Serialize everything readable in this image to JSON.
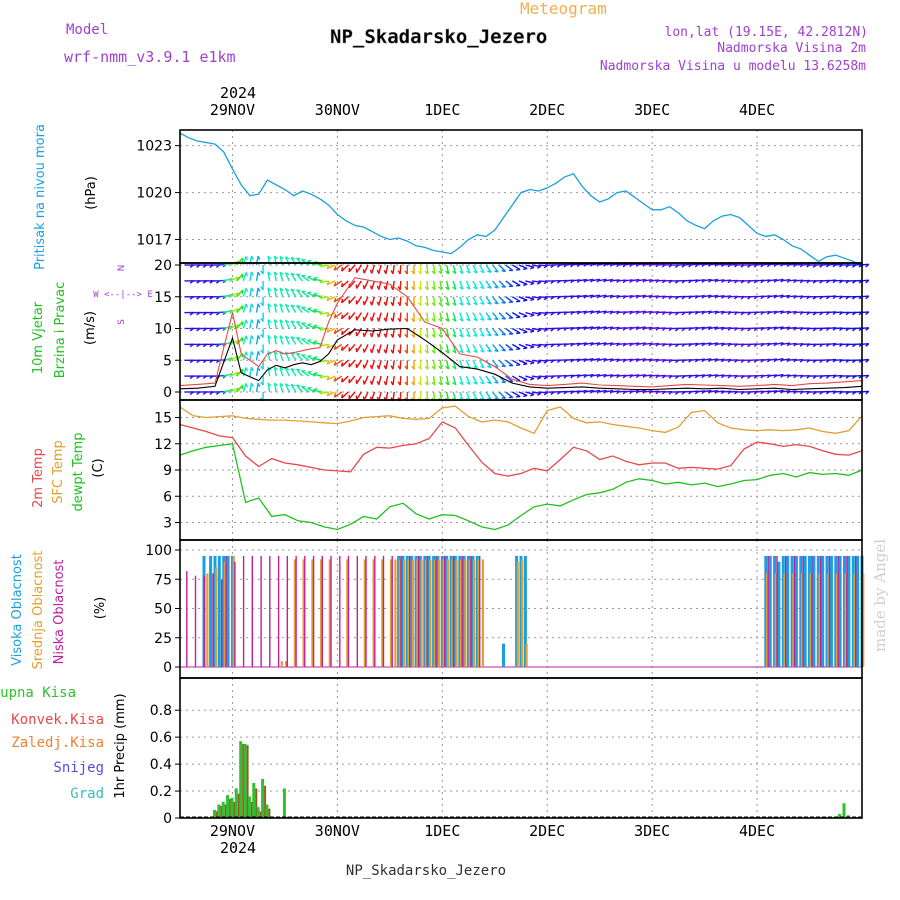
{
  "header": {
    "model_label": "Model",
    "model_name": "wrf-nmm_v3.9.1 e1km",
    "product": "Meteogram",
    "station": "NP_Skadarsko_Jezero",
    "lonlat": "lon,lat (19.15E, 42.2812N)",
    "elevation": "Nadmorska Visina 2m",
    "model_elevation": "Nadmorska Visina u modelu 13.6258m",
    "credit": "made by Angel",
    "footer": "NP_Skadarsko_Jezero"
  },
  "time_axis": {
    "top_year": "2024",
    "bottom_year": "2024",
    "days": [
      "29NOV",
      "30NOV",
      "1DEC",
      "2DEC",
      "3DEC",
      "4DEC"
    ],
    "hours_start": 12,
    "hours_end": 168
  },
  "panels": {
    "pressure": {
      "labels": [
        "Pritisak na nivou mora",
        "(hPa)"
      ],
      "ticks": [
        "1023",
        "1020",
        "1017"
      ],
      "tick_values": [
        1023,
        1020,
        1017
      ]
    },
    "wind": {
      "labels": [
        "10m Vjetar",
        "Brzina i Pravac",
        "(m/s)"
      ],
      "ticks": [
        "20",
        "15",
        "10",
        "5",
        "0"
      ],
      "tick_values": [
        20,
        15,
        10,
        5,
        0
      ],
      "compass": [
        "N",
        "W <--|--> E",
        "S"
      ]
    },
    "temperature": {
      "labels": [
        "2m Temp",
        "SFC Temp",
        "dewpt Temp",
        "(C)"
      ],
      "ticks": [
        "15",
        "12",
        "9",
        "6",
        "3"
      ],
      "tick_values": [
        15,
        12,
        9,
        6,
        3
      ]
    },
    "cloud": {
      "labels": [
        "Visoka Oblacnost",
        "Srednja Oblacnost",
        "Niska Oblacnost",
        "(%)"
      ],
      "ticks": [
        "100",
        "75",
        "50",
        "25",
        "0"
      ],
      "tick_values": [
        100,
        75,
        50,
        25,
        0
      ]
    },
    "precip": {
      "labels": [
        "1hr Precip (mm)"
      ],
      "legend": [
        "Ukupna Kisa",
        "Konvek.Kisa",
        "Zaledj.Kisa",
        "Snijeg",
        "Grad"
      ],
      "ticks": [
        "0.8",
        "0.6",
        "0.4",
        "0.2",
        "0"
      ],
      "tick_values": [
        0.8,
        0.6,
        0.4,
        0.2,
        0
      ]
    }
  },
  "colors": {
    "title": "#000000",
    "meteogram": "#f0b050",
    "model": "#a040d0",
    "pressure": "#1aa0e0",
    "temp2m": "#e84848",
    "sfc": "#e0a030",
    "dewpt": "#20c020",
    "high_cloud": "#1aa0e0",
    "mid_cloud": "#e0a030",
    "low_cloud": "#c020a0",
    "rain": "#30c030",
    "conv": "#e84848",
    "frz": "#f08030",
    "snow": "#5050e0",
    "hail": "#30c0c0",
    "wind_speed": "#000000",
    "wind_gust": "#e84848"
  },
  "chart_data": [
    {
      "type": "line",
      "name": "pressure",
      "x_unit": "hours since 29NOV 00UTC",
      "x": [
        12,
        14,
        16,
        18,
        20,
        22,
        24,
        26,
        28,
        30,
        32,
        34,
        36,
        38,
        40,
        42,
        44,
        46,
        48,
        50,
        52,
        54,
        56,
        58,
        60,
        62,
        64,
        66,
        68,
        70,
        72,
        74,
        76,
        78,
        80,
        82,
        84,
        86,
        88,
        90,
        92,
        94,
        96,
        98,
        100,
        102,
        104,
        106,
        108,
        110,
        112,
        114,
        116,
        118,
        120,
        122,
        124,
        126,
        128,
        130,
        132,
        134,
        136,
        138,
        140,
        142,
        144,
        146,
        148,
        150,
        152,
        154,
        156,
        158,
        160,
        162,
        164,
        166,
        168
      ],
      "values": [
        1023.8,
        1023.5,
        1023.3,
        1023.2,
        1023.1,
        1022.6,
        1021.5,
        1020.5,
        1019.8,
        1019.9,
        1020.8,
        1020.5,
        1020.2,
        1019.8,
        1020.1,
        1019.9,
        1019.6,
        1019.2,
        1018.6,
        1018.2,
        1017.9,
        1017.8,
        1017.5,
        1017.2,
        1017.0,
        1017.1,
        1016.9,
        1016.6,
        1016.5,
        1016.3,
        1016.2,
        1016.1,
        1016.5,
        1017.0,
        1017.3,
        1017.2,
        1017.6,
        1018.4,
        1019.2,
        1020.0,
        1020.2,
        1020.1,
        1020.3,
        1020.6,
        1021.0,
        1021.2,
        1020.4,
        1019.8,
        1019.4,
        1019.6,
        1020.0,
        1020.1,
        1019.7,
        1019.3,
        1018.9,
        1018.9,
        1019.1,
        1018.7,
        1018.2,
        1017.9,
        1017.7,
        1018.2,
        1018.5,
        1018.6,
        1018.4,
        1017.9,
        1017.4,
        1017.2,
        1017.3,
        1017.0,
        1016.6,
        1016.4,
        1016.0,
        1015.6,
        1015.9,
        1016.0,
        1015.8,
        1015.6,
        1015.3
      ],
      "ylabel": "(hPa)",
      "ylim": [
        1015.5,
        1024
      ]
    },
    {
      "type": "line",
      "name": "wind",
      "x_unit": "hours since 29NOV 00UTC",
      "x": [
        12,
        16,
        20,
        24,
        26,
        28,
        30,
        32,
        34,
        36,
        38,
        40,
        42,
        44,
        46,
        48,
        52,
        56,
        60,
        64,
        68,
        72,
        76,
        80,
        84,
        88,
        92,
        96,
        100,
        104,
        108,
        112,
        116,
        120,
        124,
        128,
        132,
        136,
        140,
        144,
        148,
        152,
        156,
        160,
        164,
        168
      ],
      "series": [
        {
          "name": "speed",
          "values": [
            0.5,
            0.6,
            0.9,
            8.5,
            3.0,
            2.4,
            1.8,
            3.5,
            4.2,
            3.8,
            4.3,
            4.6,
            4.3,
            4.8,
            6.0,
            8.2,
            9.8,
            9.6,
            9.9,
            10.0,
            8.2,
            6.2,
            4.0,
            3.6,
            2.8,
            1.4,
            0.8,
            0.6,
            0.7,
            0.8,
            0.6,
            0.5,
            0.4,
            0.4,
            0.5,
            0.6,
            0.5,
            0.6,
            0.4,
            0.5,
            0.6,
            0.4,
            0.5,
            0.6,
            0.7,
            0.9
          ]
        },
        {
          "name": "gust",
          "values": [
            1.0,
            1.2,
            1.4,
            12.5,
            6.0,
            5.0,
            4.0,
            6.0,
            6.5,
            6.0,
            6.2,
            6.5,
            6.8,
            7.0,
            11.0,
            14.0,
            18.0,
            17.5,
            17.0,
            15.0,
            11.0,
            10.0,
            6.0,
            5.5,
            4.0,
            2.0,
            1.2,
            1.0,
            1.2,
            1.4,
            1.1,
            1.0,
            0.9,
            0.8,
            1.0,
            1.2,
            1.1,
            1.0,
            0.9,
            1.0,
            1.2,
            1.0,
            1.3,
            1.4,
            1.6,
            1.8
          ]
        }
      ],
      "direction_deg": [
        90,
        90,
        90,
        60,
        20,
        10,
        10,
        350,
        350,
        340,
        330,
        320,
        300,
        290,
        260,
        240,
        220,
        200,
        190,
        180,
        175,
        170,
        160,
        150,
        140,
        120,
        100,
        90,
        85,
        80,
        80,
        85,
        80,
        85,
        90,
        85,
        80,
        85,
        90,
        85,
        80,
        85,
        90,
        85,
        90,
        85
      ],
      "ylabel": "(m/s)",
      "ylim": [
        0,
        20
      ]
    },
    {
      "type": "line",
      "name": "temperature",
      "x_unit": "hours since 29NOV 00UTC",
      "x": [
        12,
        15,
        18,
        21,
        24,
        27,
        30,
        33,
        36,
        39,
        42,
        45,
        48,
        51,
        54,
        57,
        60,
        63,
        66,
        69,
        72,
        75,
        78,
        81,
        84,
        87,
        90,
        93,
        96,
        99,
        102,
        105,
        108,
        111,
        114,
        117,
        120,
        123,
        126,
        129,
        132,
        135,
        138,
        141,
        144,
        147,
        150,
        153,
        156,
        159,
        162,
        165,
        168
      ],
      "series": [
        {
          "name": "2m Temp",
          "values": [
            14.2,
            13.8,
            13.4,
            12.9,
            12.7,
            10.6,
            9.4,
            10.3,
            9.8,
            9.6,
            9.3,
            9.0,
            8.9,
            8.8,
            10.8,
            11.6,
            11.5,
            11.8,
            12.0,
            12.6,
            14.5,
            13.8,
            11.8,
            9.9,
            8.6,
            8.3,
            8.6,
            9.2,
            8.9,
            10.2,
            11.6,
            11.2,
            10.2,
            10.6,
            10.0,
            9.6,
            9.8,
            9.8,
            9.2,
            9.3,
            9.2,
            9.1,
            9.5,
            11.4,
            12.2,
            12.0,
            11.7,
            11.9,
            11.7,
            11.2,
            10.8,
            10.7,
            11.2
          ]
        },
        {
          "name": "SFC Temp",
          "values": [
            16.2,
            15.2,
            15.0,
            15.1,
            15.2,
            14.9,
            14.8,
            14.7,
            14.7,
            14.6,
            14.5,
            14.4,
            14.3,
            14.6,
            15.0,
            15.1,
            15.2,
            14.9,
            14.8,
            14.9,
            16.1,
            16.3,
            15.1,
            14.5,
            14.7,
            14.5,
            13.8,
            13.2,
            15.8,
            16.2,
            14.9,
            14.4,
            14.5,
            14.2,
            14.0,
            13.8,
            13.5,
            13.3,
            13.9,
            15.6,
            15.8,
            14.4,
            13.8,
            13.6,
            13.5,
            13.6,
            13.5,
            13.6,
            13.8,
            13.4,
            13.2,
            13.5,
            15.2
          ]
        },
        {
          "name": "dewpt Temp",
          "values": [
            10.7,
            11.2,
            11.6,
            11.8,
            12.0,
            5.3,
            5.8,
            3.7,
            3.9,
            3.2,
            3.0,
            2.5,
            2.2,
            2.8,
            3.7,
            3.4,
            4.8,
            5.2,
            4.0,
            3.4,
            3.9,
            3.8,
            3.2,
            2.5,
            2.2,
            2.7,
            3.8,
            4.8,
            5.1,
            4.9,
            5.6,
            6.2,
            6.4,
            6.8,
            7.6,
            8.0,
            7.8,
            7.4,
            7.6,
            7.3,
            7.5,
            7.1,
            7.4,
            7.8,
            7.9,
            8.4,
            8.6,
            8.2,
            8.7,
            8.5,
            8.6,
            8.4,
            9.0
          ]
        }
      ],
      "ylabel": "(C)",
      "ylim": [
        1,
        17
      ]
    },
    {
      "type": "bar",
      "name": "cloud",
      "x_unit": "hours since 29NOV 00UTC",
      "series": [
        {
          "name": "Visoka Oblacnost",
          "x": [
            17.5,
            19,
            20,
            21,
            22,
            23,
            24,
            62,
            63,
            64,
            65,
            66,
            67,
            68,
            69,
            70,
            71,
            72,
            73,
            74,
            75,
            76,
            77,
            78,
            79,
            80,
            86,
            89,
            90,
            91,
            146,
            147,
            148,
            149,
            150,
            151,
            152,
            153,
            154,
            155,
            156,
            157,
            158,
            159,
            160,
            161,
            162,
            163,
            164,
            165,
            166,
            167,
            168
          ],
          "values": [
            95,
            95,
            95,
            95,
            95,
            95,
            95,
            95,
            95,
            95,
            95,
            95,
            95,
            95,
            95,
            95,
            95,
            95,
            95,
            95,
            95,
            95,
            95,
            95,
            95,
            95,
            20,
            95,
            95,
            95,
            95,
            95,
            95,
            90,
            95,
            95,
            95,
            95,
            95,
            95,
            95,
            95,
            95,
            95,
            95,
            95,
            95,
            95,
            95,
            95,
            95,
            95,
            95
          ]
        },
        {
          "name": "Srednja Oblacnost",
          "x": [
            18,
            20,
            22,
            24,
            35,
            36,
            38,
            40,
            42,
            44,
            46,
            50,
            54,
            56,
            58,
            60,
            61,
            62,
            63,
            64,
            65,
            66,
            67,
            68,
            69,
            70,
            71,
            72,
            73,
            74,
            75,
            76,
            77,
            78,
            79,
            80,
            81,
            89,
            90,
            91,
            146,
            148,
            150,
            152,
            154,
            156,
            158,
            160,
            162,
            164,
            166,
            168
          ],
          "values": [
            80,
            85,
            90,
            95,
            5,
            5,
            92,
            92,
            92,
            92,
            92,
            92,
            92,
            92,
            92,
            92,
            92,
            92,
            92,
            92,
            92,
            92,
            92,
            92,
            92,
            92,
            92,
            92,
            92,
            92,
            92,
            92,
            92,
            92,
            92,
            92,
            92,
            90,
            92,
            20,
            80,
            80,
            80,
            80,
            80,
            80,
            80,
            80,
            80,
            80,
            80,
            80
          ]
        },
        {
          "name": "Niska Oblacnost",
          "x": [
            13,
            15,
            17,
            19,
            21,
            22,
            24,
            26,
            28,
            30,
            32,
            34,
            36,
            38,
            40,
            42,
            44,
            46,
            48,
            50,
            52,
            54,
            56,
            58,
            60,
            62,
            64,
            66,
            68,
            70,
            72,
            74,
            76,
            78,
            80,
            146,
            148,
            150,
            152,
            154,
            156,
            158,
            160,
            162,
            164,
            166
          ],
          "values": [
            82,
            78,
            78,
            80,
            75,
            95,
            90,
            95,
            95,
            95,
            95,
            95,
            95,
            95,
            95,
            95,
            95,
            95,
            95,
            95,
            95,
            95,
            95,
            95,
            95,
            95,
            95,
            95,
            95,
            95,
            95,
            95,
            95,
            95,
            95,
            95,
            95,
            95,
            95,
            95,
            95,
            95,
            95,
            95,
            95,
            95
          ]
        }
      ],
      "ylabel": "(%)",
      "ylim": [
        0,
        100
      ]
    },
    {
      "type": "bar",
      "name": "precip",
      "x_unit": "hours since 29NOV 00UTC",
      "x": [
        20,
        21,
        22,
        23,
        24,
        25,
        26,
        27,
        28,
        29,
        30,
        31,
        32,
        36,
        163,
        164,
        165
      ],
      "series": [
        {
          "name": "Ukupna Kisa",
          "values": [
            0.06,
            0.1,
            0.12,
            0.17,
            0.15,
            0.22,
            0.57,
            0.55,
            0.16,
            0.26,
            0.08,
            0.29,
            0.1,
            0.22,
            0.03,
            0.11,
            0.02
          ]
        },
        {
          "name": "Konvek.Kisa",
          "values": [
            0.05,
            0.09,
            0.1,
            0.14,
            0.12,
            0.18,
            0.55,
            0.54,
            0.12,
            0.22,
            0.05,
            0.24,
            0.07,
            0.01,
            0.0,
            0.0,
            0.0
          ]
        }
      ],
      "ylabel": "1hr Precip (mm)",
      "ylim": [
        0,
        0.95
      ]
    }
  ]
}
